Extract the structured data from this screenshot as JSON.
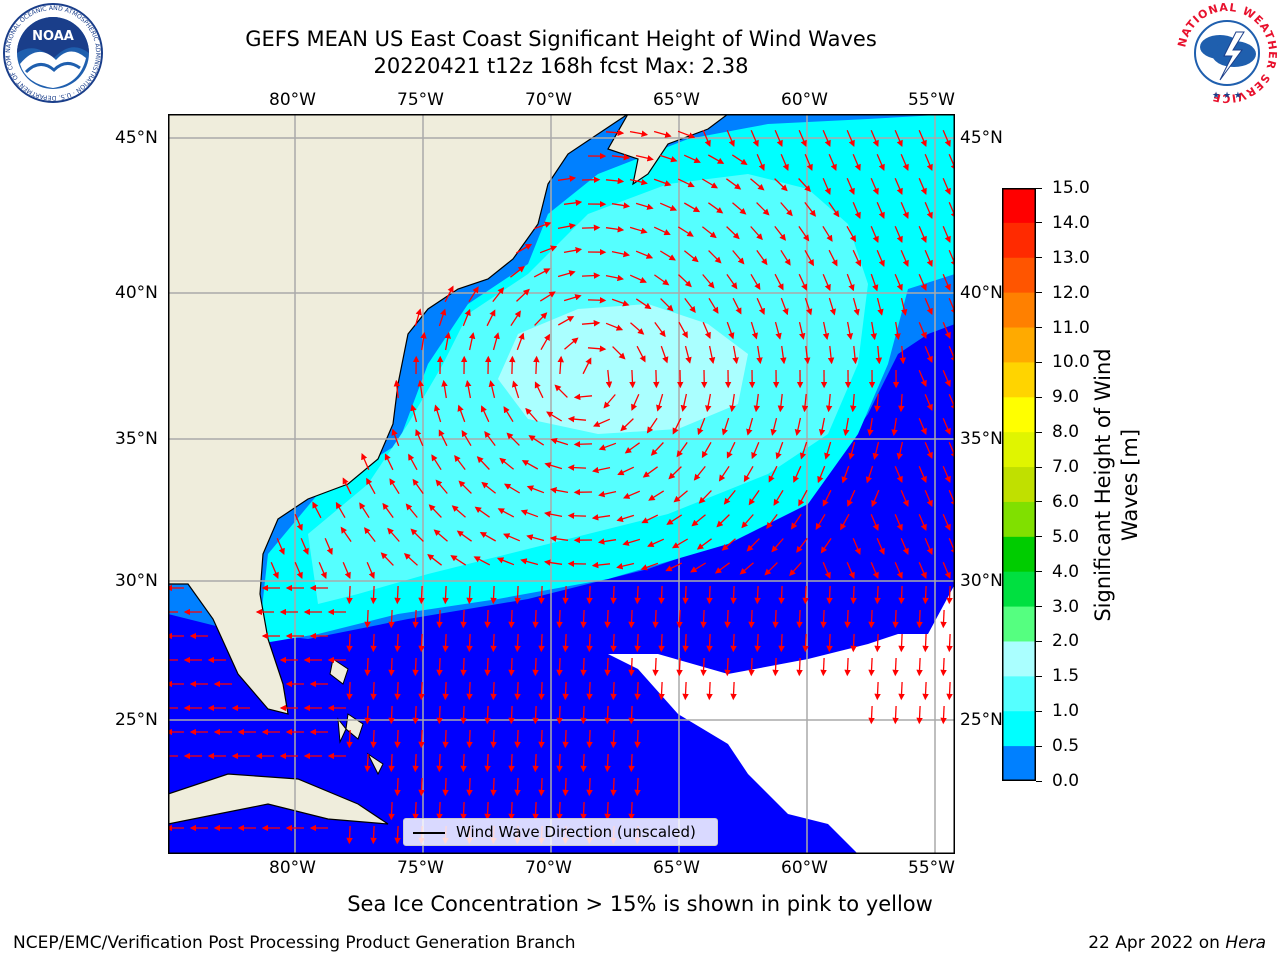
{
  "title": {
    "line1": "GEFS MEAN US East Coast Significant Height of Wind Waves",
    "line2": "20220421 t12z 168h fcst   Max: 2.38"
  },
  "map": {
    "lon_ticks": [
      "80°W",
      "75°W",
      "70°W",
      "65°W",
      "60°W",
      "55°W"
    ],
    "lat_ticks": [
      "45°N",
      "40°N",
      "35°N",
      "30°N",
      "25°N"
    ],
    "legend_label": "Wind Wave Direction (unscaled)",
    "land_color": "#efeddc",
    "vector_color": "#ff0000",
    "grid": true
  },
  "colorbar": {
    "label": "Significant Height of Wind Waves [m]",
    "ticks": [
      "15.0",
      "14.0",
      "13.0",
      "12.0",
      "11.0",
      "10.0",
      "9.0",
      "8.0",
      "7.0",
      "6.0",
      "5.0",
      "4.0",
      "3.0",
      "2.0",
      "1.5",
      "1.0",
      "0.5",
      "0.0"
    ],
    "colors": [
      "#ff0000",
      "#ff2a00",
      "#ff5500",
      "#ff8000",
      "#ffaa00",
      "#ffd400",
      "#ffff00",
      "#e0f500",
      "#c0e000",
      "#80e000",
      "#00cc00",
      "#00e040",
      "#55ff80",
      "#aaffff",
      "#55ffff",
      "#00ffff",
      "#0080ff",
      "#0000ff"
    ]
  },
  "logos": {
    "left_text": "NOAA",
    "left_ring": "NATIONAL OCEANIC AND ATMOSPHERIC ADMINISTRATION · U.S. DEPARTMENT OF COMMERCE",
    "right_ring": "NATIONAL WEATHER SERVICE"
  },
  "subtitle": "Sea Ice Concentration > 15% is shown in pink to yellow",
  "credit": "NCEP/EMC/Verification Post Processing Product Generation Branch",
  "datestamp": {
    "date": "22 Apr 2022 on ",
    "host": "Hera"
  }
}
